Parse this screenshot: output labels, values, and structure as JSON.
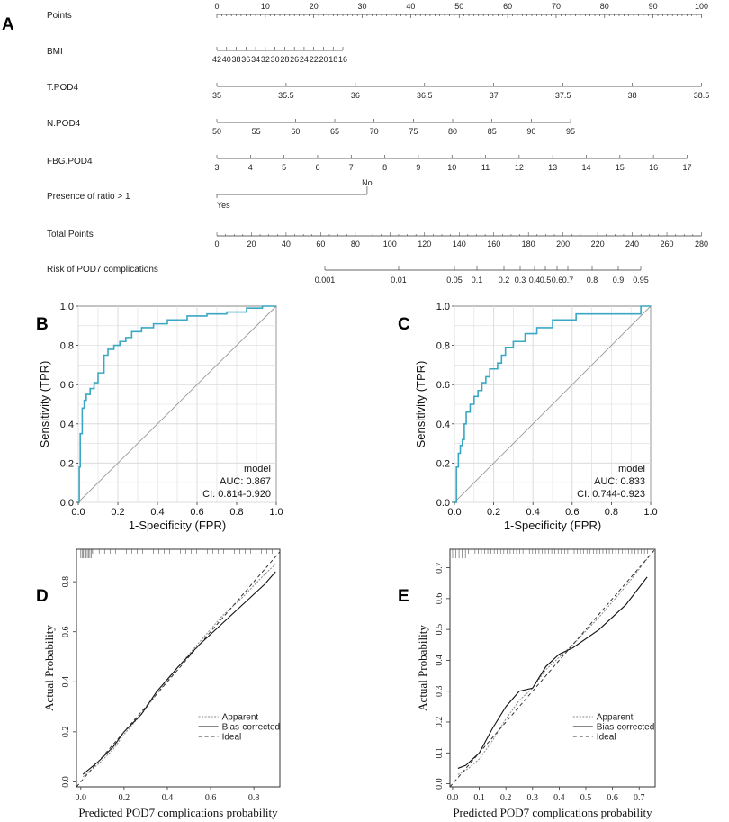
{
  "panels": {
    "a": "A",
    "b": "B",
    "c": "C",
    "d": "D",
    "e": "E"
  },
  "nomogram": {
    "rows": [
      {
        "label": "Points",
        "ticks": [
          "0",
          "10",
          "20",
          "30",
          "40",
          "50",
          "60",
          "70",
          "80",
          "90",
          "100"
        ]
      },
      {
        "label": "BMI",
        "ticks": [
          "42",
          "40",
          "38",
          "36",
          "34",
          "32",
          "30",
          "28",
          "26",
          "24",
          "22",
          "20",
          "18",
          "16"
        ]
      },
      {
        "label": "T.POD4",
        "ticks": [
          "35",
          "35.5",
          "36",
          "36.5",
          "37",
          "37.5",
          "38",
          "38.5"
        ]
      },
      {
        "label": "N.POD4",
        "ticks": [
          "50",
          "55",
          "60",
          "65",
          "70",
          "75",
          "80",
          "85",
          "90",
          "95"
        ]
      },
      {
        "label": "FBG.POD4",
        "ticks": [
          "3",
          "4",
          "5",
          "6",
          "7",
          "8",
          "9",
          "10",
          "11",
          "12",
          "13",
          "14",
          "15",
          "16",
          "17"
        ]
      },
      {
        "label": "Presence of ratio > 1",
        "ticks": [
          "No",
          "Yes"
        ]
      },
      {
        "label": "Total Points",
        "ticks": [
          "0",
          "20",
          "40",
          "60",
          "80",
          "100",
          "120",
          "140",
          "160",
          "180",
          "200",
          "220",
          "240",
          "260",
          "280"
        ]
      },
      {
        "label": "Risk of POD7 complications",
        "ticks": [
          "0.001",
          "0.01",
          "0.05",
          "0.1",
          "0.2",
          "0.3",
          "0.4",
          "0.5",
          "0.6",
          "0.7",
          "0.8",
          "0.9",
          "0.95"
        ]
      }
    ]
  },
  "chart_data": [
    {
      "panel": "B",
      "type": "line",
      "xlabel": "1-Specificity (FPR)",
      "ylabel": "Sensitivity (TPR)",
      "xlim": [
        0,
        1
      ],
      "ylim": [
        0,
        1
      ],
      "x_ticks": [
        "0.0",
        "0.2",
        "0.4",
        "0.6",
        "0.8",
        "1.0"
      ],
      "y_ticks": [
        "0.0",
        "0.2",
        "0.4",
        "0.6",
        "0.8",
        "1.0"
      ],
      "legend_title": "model",
      "auc": "AUC: 0.867",
      "ci": "CI: 0.814-0.920",
      "series": [
        {
          "name": "model",
          "color": "#3aa8c4",
          "x": [
            0,
            0.005,
            0.005,
            0.01,
            0.01,
            0.02,
            0.02,
            0.03,
            0.03,
            0.04,
            0.04,
            0.06,
            0.06,
            0.08,
            0.08,
            0.1,
            0.1,
            0.13,
            0.13,
            0.15,
            0.15,
            0.18,
            0.18,
            0.21,
            0.21,
            0.24,
            0.24,
            0.27,
            0.27,
            0.32,
            0.32,
            0.38,
            0.38,
            0.45,
            0.45,
            0.55,
            0.55,
            0.65,
            0.65,
            0.75,
            0.75,
            0.85,
            0.85,
            0.93,
            0.93,
            1.0
          ],
          "y": [
            0,
            0,
            0.18,
            0.18,
            0.35,
            0.35,
            0.48,
            0.48,
            0.52,
            0.52,
            0.55,
            0.55,
            0.58,
            0.58,
            0.61,
            0.61,
            0.66,
            0.66,
            0.75,
            0.75,
            0.78,
            0.78,
            0.8,
            0.8,
            0.82,
            0.82,
            0.84,
            0.84,
            0.87,
            0.87,
            0.89,
            0.89,
            0.91,
            0.91,
            0.93,
            0.93,
            0.95,
            0.95,
            0.96,
            0.96,
            0.97,
            0.97,
            0.99,
            0.99,
            1.0,
            1.0
          ]
        },
        {
          "name": "reference",
          "color": "#999999",
          "x": [
            0,
            1
          ],
          "y": [
            0,
            1
          ]
        }
      ]
    },
    {
      "panel": "C",
      "type": "line",
      "xlabel": "1-Specificity (FPR)",
      "ylabel": "Sensitivity (TPR)",
      "xlim": [
        0,
        1
      ],
      "ylim": [
        0,
        1
      ],
      "x_ticks": [
        "0.0",
        "0.2",
        "0.4",
        "0.6",
        "0.8",
        "1.0"
      ],
      "y_ticks": [
        "0.0",
        "0.2",
        "0.4",
        "0.6",
        "0.8",
        "1.0"
      ],
      "legend_title": "model",
      "auc": "AUC: 0.833",
      "ci": "CI: 0.744-0.923",
      "series": [
        {
          "name": "model",
          "color": "#3aa8c4",
          "x": [
            0,
            0.01,
            0.01,
            0.02,
            0.02,
            0.03,
            0.03,
            0.04,
            0.04,
            0.05,
            0.05,
            0.06,
            0.06,
            0.08,
            0.08,
            0.1,
            0.1,
            0.12,
            0.12,
            0.14,
            0.14,
            0.16,
            0.16,
            0.18,
            0.18,
            0.22,
            0.22,
            0.24,
            0.24,
            0.26,
            0.26,
            0.3,
            0.3,
            0.36,
            0.36,
            0.42,
            0.42,
            0.5,
            0.5,
            0.62,
            0.62,
            0.72,
            0.72,
            0.95,
            0.95,
            1.0
          ],
          "y": [
            0,
            0,
            0.18,
            0.18,
            0.25,
            0.25,
            0.29,
            0.29,
            0.32,
            0.32,
            0.4,
            0.4,
            0.46,
            0.46,
            0.5,
            0.5,
            0.54,
            0.54,
            0.57,
            0.57,
            0.61,
            0.61,
            0.64,
            0.64,
            0.68,
            0.68,
            0.71,
            0.71,
            0.75,
            0.75,
            0.79,
            0.79,
            0.82,
            0.82,
            0.86,
            0.86,
            0.89,
            0.89,
            0.93,
            0.93,
            0.96,
            0.96,
            0.96,
            0.96,
            1.0,
            1.0
          ]
        },
        {
          "name": "reference",
          "color": "#999999",
          "x": [
            0,
            1
          ],
          "y": [
            0,
            1
          ]
        }
      ]
    },
    {
      "panel": "D",
      "type": "line",
      "xlabel": "Predicted POD7 complications probability",
      "ylabel": "Actual Probability",
      "xlim": [
        -0.02,
        0.92
      ],
      "ylim": [
        -0.02,
        0.93
      ],
      "x_ticks": [
        "0.0",
        "0.2",
        "0.4",
        "0.6",
        "0.8"
      ],
      "y_ticks": [
        "0.0",
        "0.2",
        "0.4",
        "0.6",
        "0.8"
      ],
      "legend": [
        "Apparent",
        "Bias-corrected",
        "Ideal"
      ],
      "series": [
        {
          "name": "Apparent",
          "x": [
            0.01,
            0.08,
            0.15,
            0.2,
            0.28,
            0.35,
            0.45,
            0.55,
            0.65,
            0.75,
            0.85,
            0.9
          ],
          "y": [
            0.02,
            0.07,
            0.13,
            0.19,
            0.27,
            0.35,
            0.46,
            0.56,
            0.66,
            0.74,
            0.83,
            0.87
          ]
        },
        {
          "name": "Bias-corrected",
          "x": [
            0.01,
            0.08,
            0.15,
            0.2,
            0.28,
            0.35,
            0.45,
            0.55,
            0.65,
            0.75,
            0.85,
            0.9
          ],
          "y": [
            0.03,
            0.08,
            0.14,
            0.2,
            0.27,
            0.36,
            0.46,
            0.55,
            0.63,
            0.71,
            0.79,
            0.84
          ]
        },
        {
          "name": "Ideal",
          "x": [
            -0.02,
            0.92
          ],
          "y": [
            -0.02,
            0.92
          ]
        }
      ]
    },
    {
      "panel": "E",
      "type": "line",
      "xlabel": "Predicted POD7 complications probability",
      "ylabel": "Actual Probability",
      "xlim": [
        -0.01,
        0.76
      ],
      "ylim": [
        -0.01,
        0.76
      ],
      "x_ticks": [
        "0.0",
        "0.1",
        "0.2",
        "0.3",
        "0.4",
        "0.5",
        "0.6",
        "0.7"
      ],
      "y_ticks": [
        "0.0",
        "0.1",
        "0.2",
        "0.3",
        "0.4",
        "0.5",
        "0.6",
        "0.7"
      ],
      "legend": [
        "Apparent",
        "Bias-corrected",
        "Ideal"
      ],
      "series": [
        {
          "name": "Apparent",
          "x": [
            0.02,
            0.06,
            0.1,
            0.15,
            0.2,
            0.25,
            0.3,
            0.35,
            0.4,
            0.45,
            0.55,
            0.65,
            0.74
          ],
          "y": [
            0.03,
            0.05,
            0.08,
            0.14,
            0.21,
            0.27,
            0.31,
            0.37,
            0.41,
            0.45,
            0.54,
            0.64,
            0.74
          ]
        },
        {
          "name": "Bias-corrected",
          "x": [
            0.02,
            0.05,
            0.1,
            0.15,
            0.2,
            0.25,
            0.3,
            0.35,
            0.4,
            0.45,
            0.55,
            0.65,
            0.73
          ],
          "y": [
            0.05,
            0.06,
            0.1,
            0.18,
            0.25,
            0.3,
            0.31,
            0.38,
            0.42,
            0.44,
            0.5,
            0.58,
            0.67
          ]
        },
        {
          "name": "Ideal",
          "x": [
            -0.01,
            0.76
          ],
          "y": [
            -0.01,
            0.76
          ]
        }
      ]
    }
  ]
}
